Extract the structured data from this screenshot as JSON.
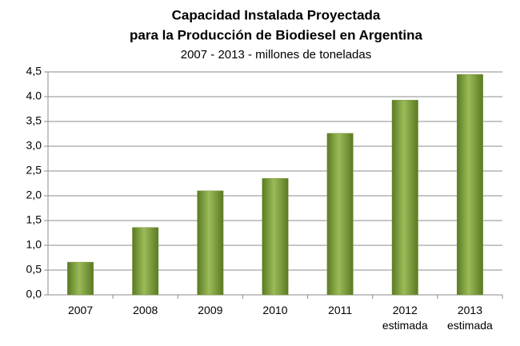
{
  "chart_data": {
    "type": "bar",
    "title": [
      "Capacidad Instalada Proyectada",
      "para la Producción de Biodiesel en Argentina"
    ],
    "subtitle": "2007 - 2013 - millones de toneladas",
    "categories": [
      "2007",
      "2008",
      "2009",
      "2010",
      "2011",
      "2012 estimada",
      "2013 estimada"
    ],
    "values": [
      0.66,
      1.36,
      2.1,
      2.35,
      3.26,
      3.93,
      4.45
    ],
    "color": "#77933c",
    "ylim": [
      0,
      4.5
    ],
    "yticks": [
      {
        "value": 0,
        "label": "0,0"
      },
      {
        "value": 0.5,
        "label": "0,5"
      },
      {
        "value": 1,
        "label": "1,0"
      },
      {
        "value": 1.5,
        "label": "1,5"
      },
      {
        "value": 2,
        "label": "2,0"
      },
      {
        "value": 2.5,
        "label": "2,5"
      },
      {
        "value": 3,
        "label": "3,0"
      },
      {
        "value": 3.5,
        "label": "3,5"
      },
      {
        "value": 4,
        "label": "4.0"
      },
      {
        "value": 4.5,
        "label": "4,5"
      }
    ],
    "grid": true
  }
}
